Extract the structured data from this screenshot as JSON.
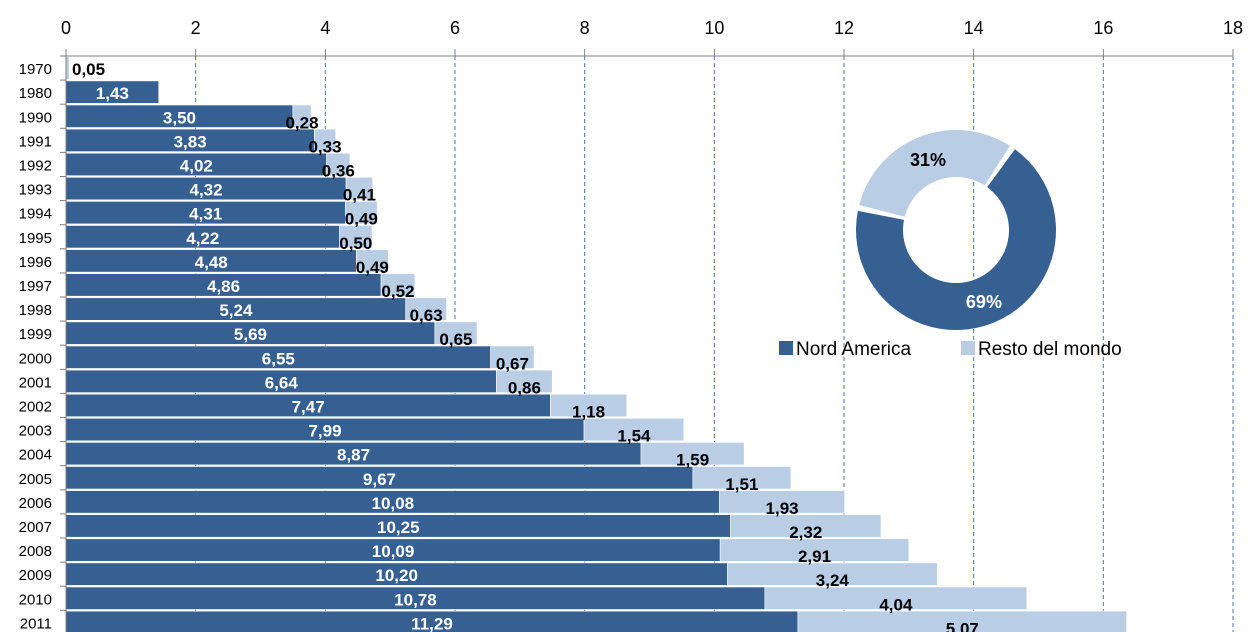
{
  "chart_data": {
    "type": "bar",
    "orientation": "horizontal",
    "stacked": true,
    "xlim": [
      0,
      18
    ],
    "x_ticks": [
      "0",
      "2",
      "4",
      "6",
      "8",
      "10",
      "12",
      "14",
      "16",
      "18"
    ],
    "categories": [
      "1970",
      "1980",
      "1990",
      "1991",
      "1992",
      "1993",
      "1994",
      "1995",
      "1996",
      "1997",
      "1998",
      "1999",
      "2000",
      "2001",
      "2002",
      "2003",
      "2004",
      "2005",
      "2006",
      "2007",
      "2008",
      "2009",
      "2010",
      "2011"
    ],
    "series": [
      {
        "name": "Nord America",
        "color": "#376092",
        "values": [
          0,
          1.43,
          3.5,
          3.83,
          4.02,
          4.32,
          4.31,
          4.22,
          4.48,
          4.86,
          5.24,
          5.69,
          6.55,
          6.64,
          7.47,
          7.99,
          8.87,
          9.67,
          10.08,
          10.25,
          10.09,
          10.2,
          10.78,
          11.29
        ],
        "labels": [
          "",
          "1,43",
          "3,50",
          "3,83",
          "4,02",
          "4,32",
          "4,31",
          "4,22",
          "4,48",
          "4,86",
          "5,24",
          "5,69",
          "6,55",
          "6,64",
          "7,47",
          "7,99",
          "8,87",
          "9,67",
          "10,08",
          "10,25",
          "10,09",
          "10,20",
          "10,78",
          "11,29"
        ]
      },
      {
        "name": "Resto del mondo",
        "color": "#b9cde5",
        "values": [
          0.05,
          0,
          0.28,
          0.33,
          0.36,
          0.41,
          0.49,
          0.5,
          0.49,
          0.52,
          0.63,
          0.65,
          0.67,
          0.86,
          1.18,
          1.54,
          1.59,
          1.51,
          1.93,
          2.32,
          2.91,
          3.24,
          4.04,
          5.07
        ],
        "labels": [
          "0,05",
          "",
          "0,28",
          "0,33",
          "0,36",
          "0,41",
          "0,49",
          "0,50",
          "0,49",
          "0,52",
          "0,63",
          "0,65",
          "0,67",
          "0,86",
          "1,18",
          "1,54",
          "1,59",
          "1,51",
          "1,93",
          "2,32",
          "2,91",
          "3,24",
          "4,04",
          "5,07"
        ]
      }
    ],
    "grid": "vertical dashed",
    "axis_position": "top",
    "legend_position": "right",
    "inset": {
      "type": "pie",
      "style": "donut",
      "slices": [
        {
          "name": "Nord America",
          "value": 69,
          "label": "69%",
          "color": "#376092"
        },
        {
          "name": "Resto del mondo",
          "value": 31,
          "label": "31%",
          "color": "#b9cde5"
        }
      ]
    }
  }
}
